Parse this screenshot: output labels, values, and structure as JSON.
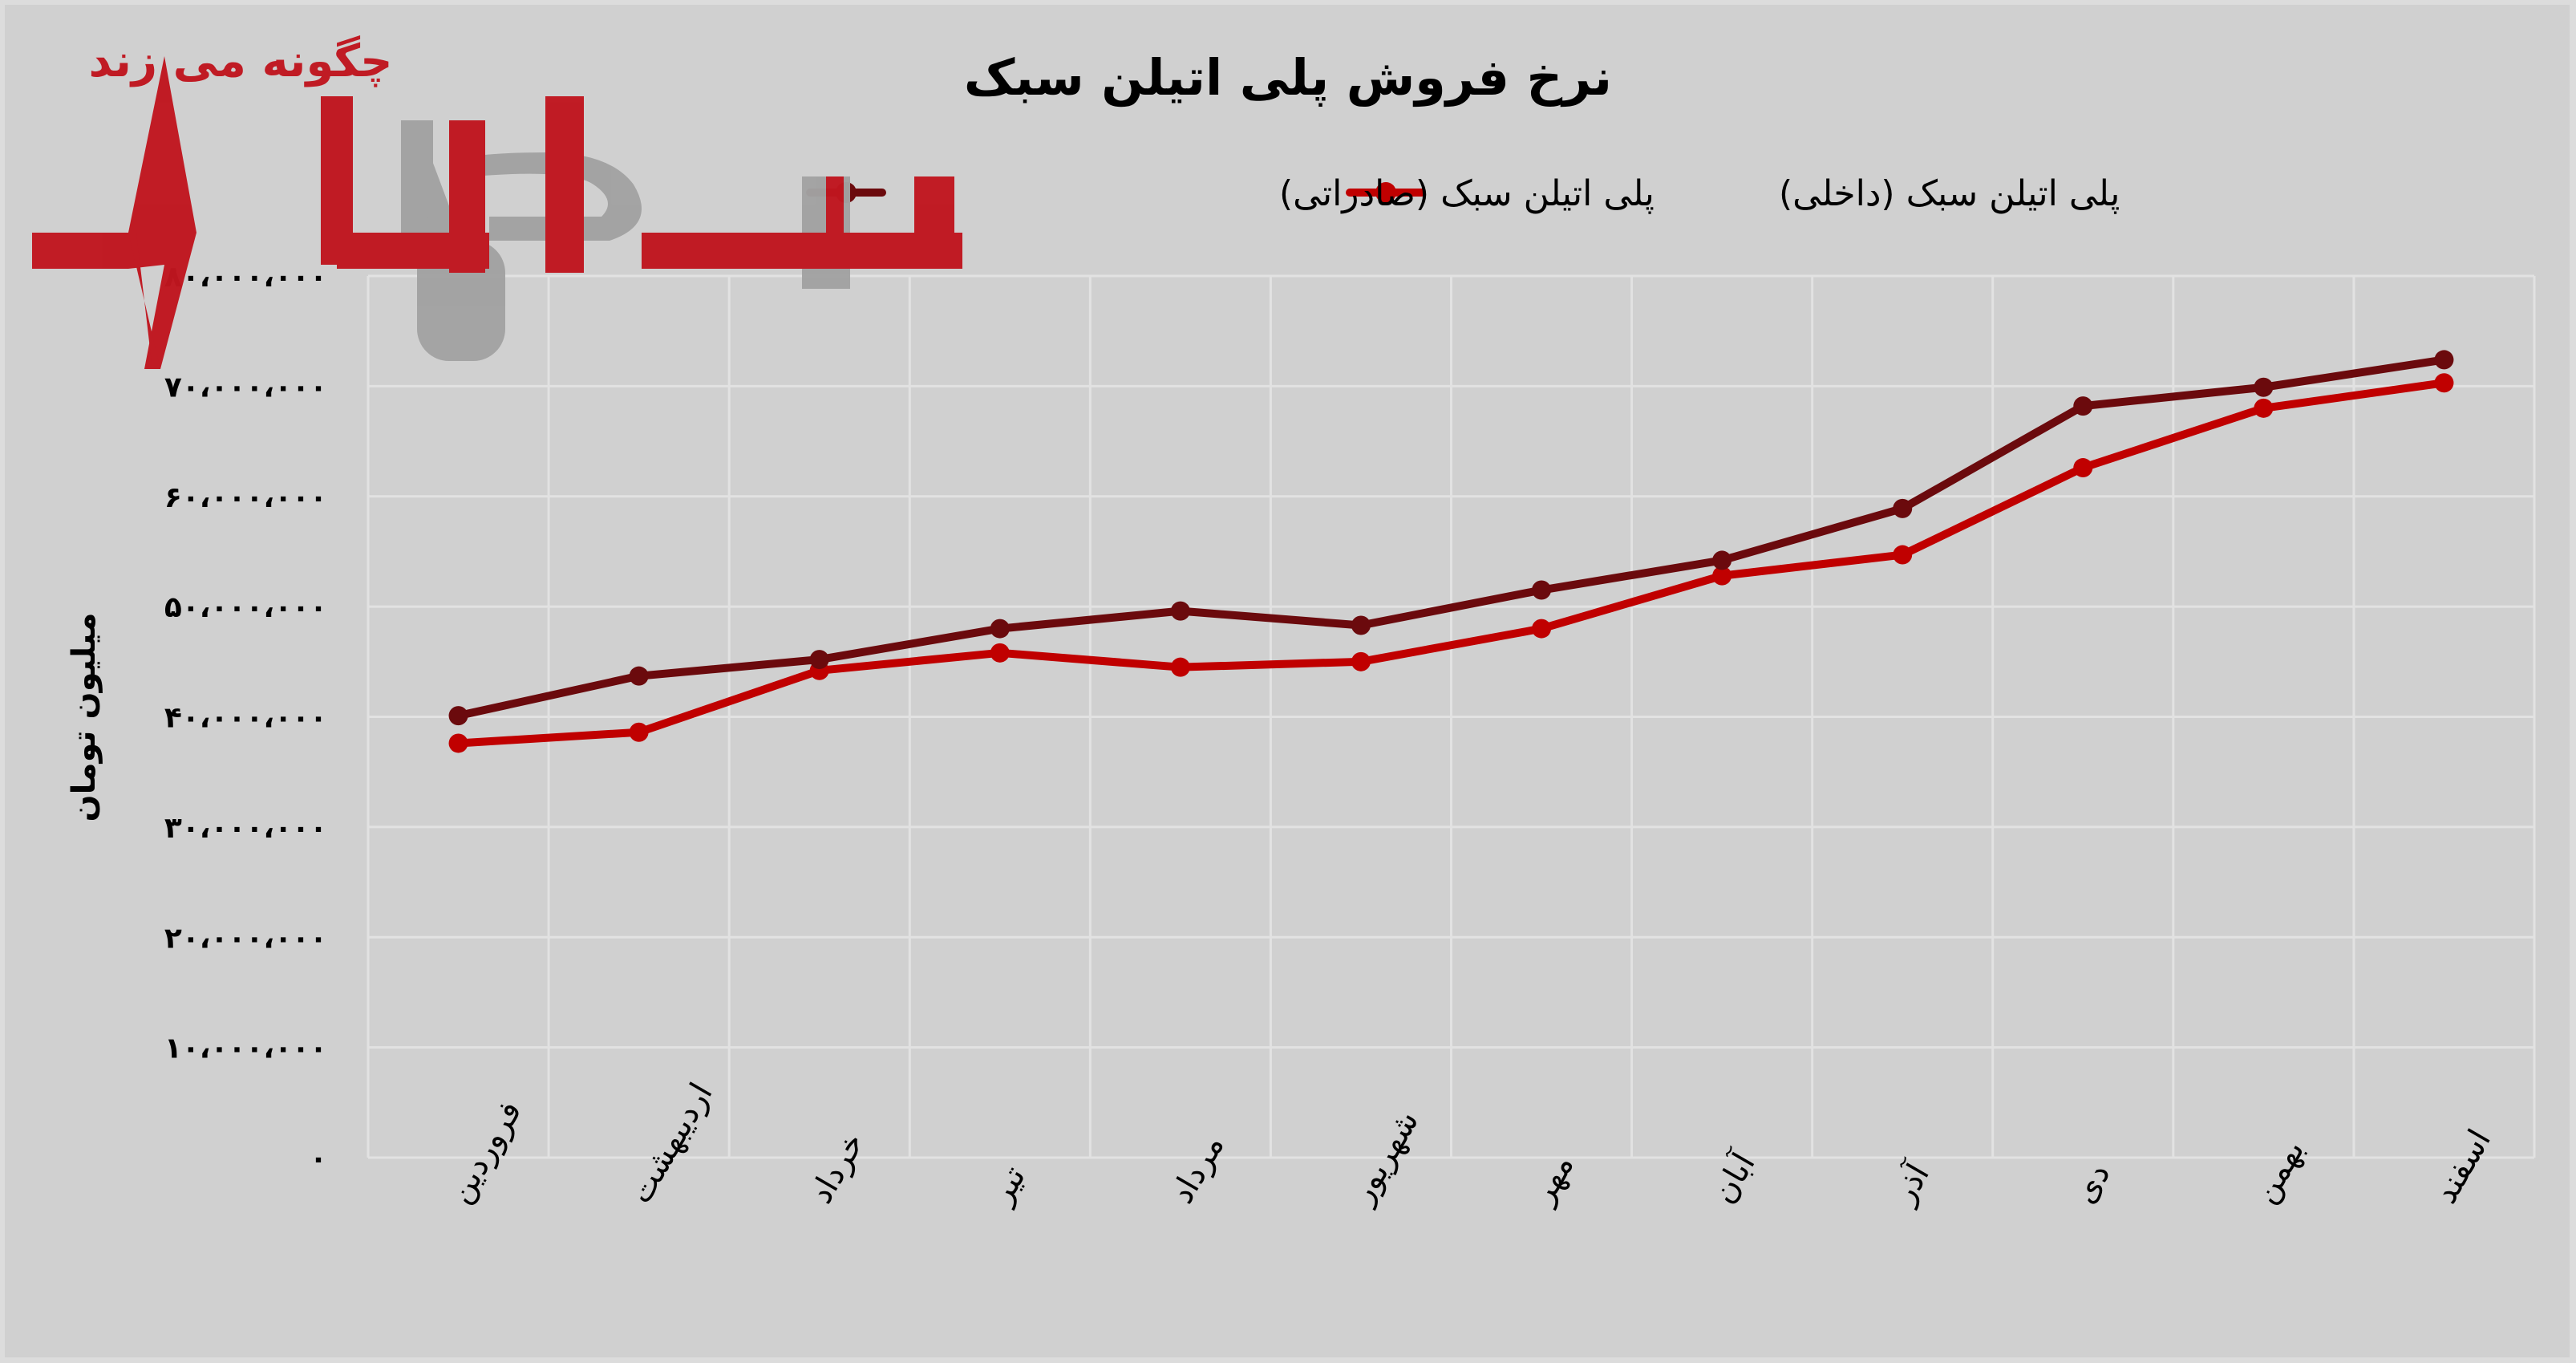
{
  "chart_data": {
    "type": "line",
    "title": "نرخ فروش پلی اتیلن سبک",
    "xlabel": "",
    "ylabel": "میلیون تومان",
    "categories": [
      "فروردین",
      "اردیبهشت",
      "خرداد",
      "تیر",
      "مرداد",
      "شهریور",
      "مهر",
      "آبان",
      "آذر",
      "دی",
      "بهمن",
      "اسفند"
    ],
    "series": [
      {
        "name": "پلی اتیلن سبک (صادراتی)",
        "color": "#6b0a0d",
        "values": [
          40100000,
          43700000,
          45200000,
          48000000,
          49600000,
          48300000,
          51500000,
          54200000,
          58900000,
          68200000,
          69900000,
          72400000
        ]
      },
      {
        "name": "پلی اتیلن سبک (داخلی)",
        "color": "#c00000",
        "values": [
          37600000,
          38600000,
          44200000,
          45800000,
          44500000,
          45000000,
          48000000,
          52800000,
          54700000,
          62600000,
          68000000,
          70300000
        ]
      }
    ],
    "ylim": [
      0,
      80000000
    ],
    "yticks": [
      0,
      10000000,
      20000000,
      30000000,
      40000000,
      50000000,
      60000000,
      70000000,
      80000000
    ],
    "ytick_labels": [
      "۰",
      "۱۰،۰۰۰،۰۰۰",
      "۲۰،۰۰۰،۰۰۰",
      "۳۰،۰۰۰،۰۰۰",
      "۴۰،۰۰۰،۰۰۰",
      "۵۰،۰۰۰،۰۰۰",
      "۶۰،۰۰۰،۰۰۰",
      "۷۰،۰۰۰،۰۰۰",
      "۸۰،۰۰۰،۰۰۰"
    ],
    "grid": true,
    "legend_position": "top"
  },
  "legend": {
    "items": [
      {
        "label": "پلی اتیلن سبک (داخلی)",
        "color": "#c00000"
      },
      {
        "label": "پلی اتیلن سبک (صادراتی)",
        "color": "#6b0a0d"
      }
    ]
  },
  "watermark": {
    "tagline": "چگونه می زند",
    "brand": "نبض بازار"
  }
}
